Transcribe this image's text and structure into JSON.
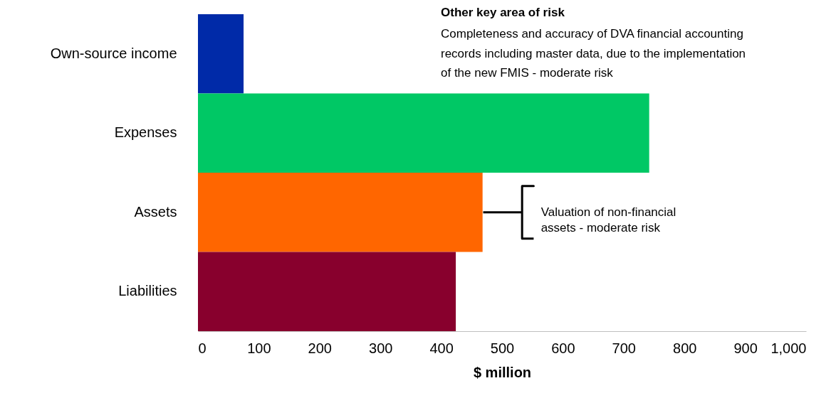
{
  "chart_data": {
    "type": "bar",
    "orientation": "horizontal",
    "xlabel": "$ million",
    "categories": [
      "Own-source income",
      "Expenses",
      "Assets",
      "Liabilities"
    ],
    "values": [
      75,
      742,
      468,
      424
    ],
    "colors": [
      "#002aa8",
      "#00c865",
      "#ff6600",
      "#88002d"
    ],
    "xlim": [
      0,
      1000
    ],
    "xticks": [
      0,
      100,
      200,
      300,
      400,
      500,
      600,
      700,
      800,
      900,
      {
        "value": 1000,
        "label": "1,000"
      }
    ],
    "grid": false,
    "annotations": [
      "Other key area of risk",
      "Completeness and accuracy of DVA financial accounting records including master data, due to the implementation of the new FMIS - moderate risk",
      {
        "text": "Valuation of non-financial assets - moderate risk",
        "x": 468,
        "y": "Assets"
      }
    ]
  }
}
